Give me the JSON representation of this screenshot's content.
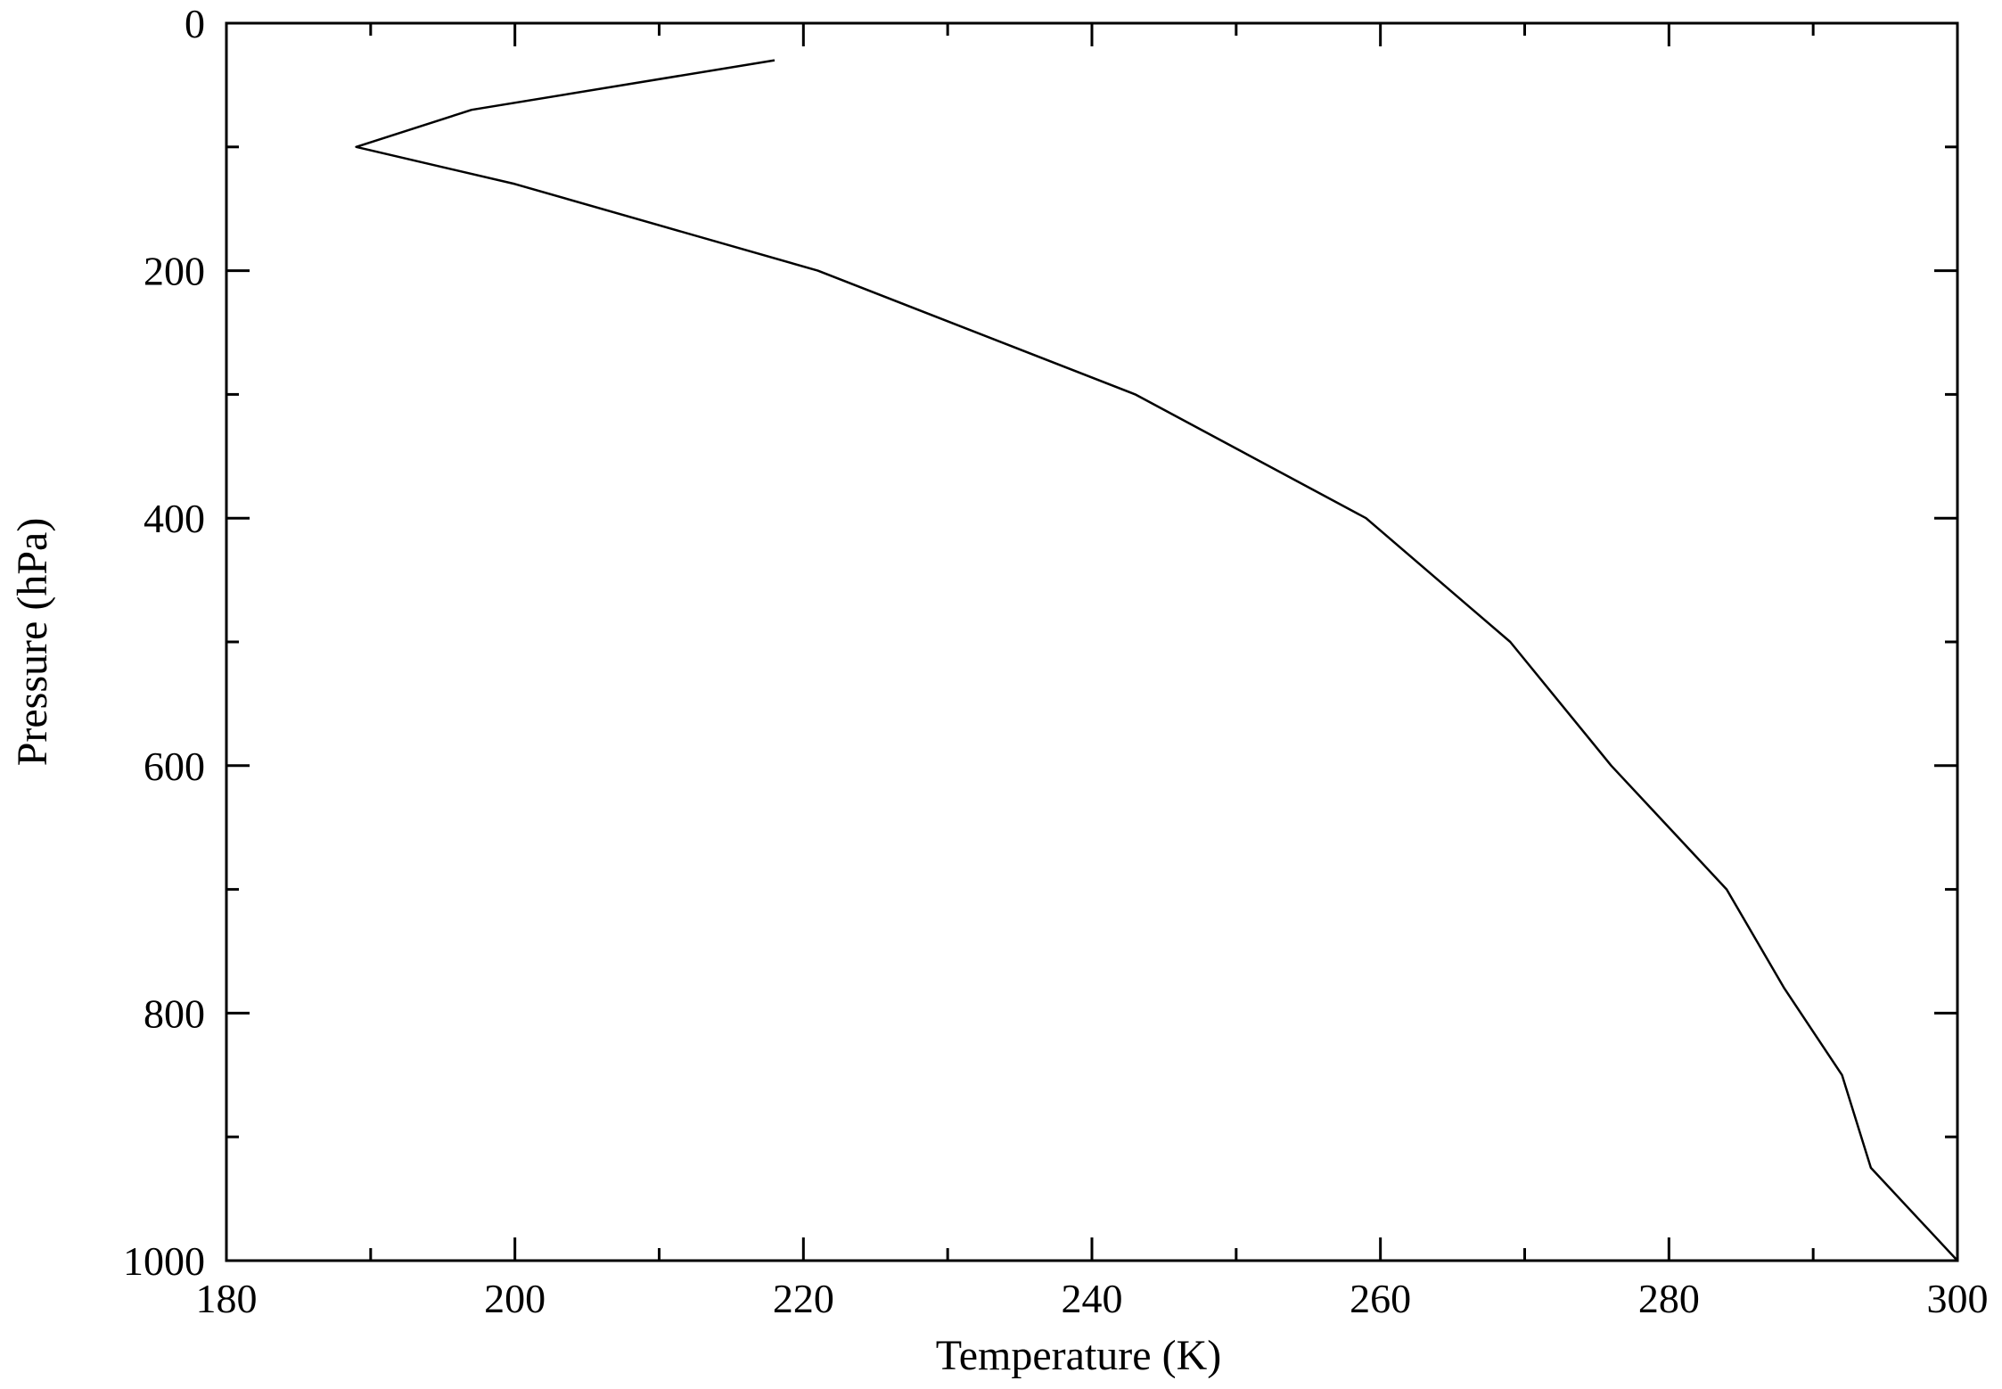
{
  "chart_data": {
    "type": "line",
    "title": "",
    "xlabel": "Temperature (K)",
    "ylabel": "Pressure (hPa)",
    "xlim": [
      180,
      300
    ],
    "ylim": [
      0,
      1000
    ],
    "y_inverted": true,
    "grid": false,
    "x_ticks": [
      180,
      200,
      220,
      240,
      260,
      280,
      300
    ],
    "y_ticks": [
      0,
      200,
      400,
      600,
      800,
      1000
    ],
    "x_tick_labels": [
      "180",
      "200",
      "220",
      "240",
      "260",
      "280",
      "300"
    ],
    "y_tick_labels": [
      "0",
      "200",
      "400",
      "600",
      "800",
      "1000"
    ],
    "series": [
      {
        "x": [
          218,
          197,
          189,
          200,
          221,
          243,
          259,
          269,
          276,
          284,
          288,
          292,
          294,
          300
        ],
        "y": [
          30,
          70,
          100,
          130,
          200,
          300,
          400,
          500,
          600,
          700,
          780,
          850,
          925,
          1000
        ]
      }
    ],
    "line_color": "#000000"
  }
}
